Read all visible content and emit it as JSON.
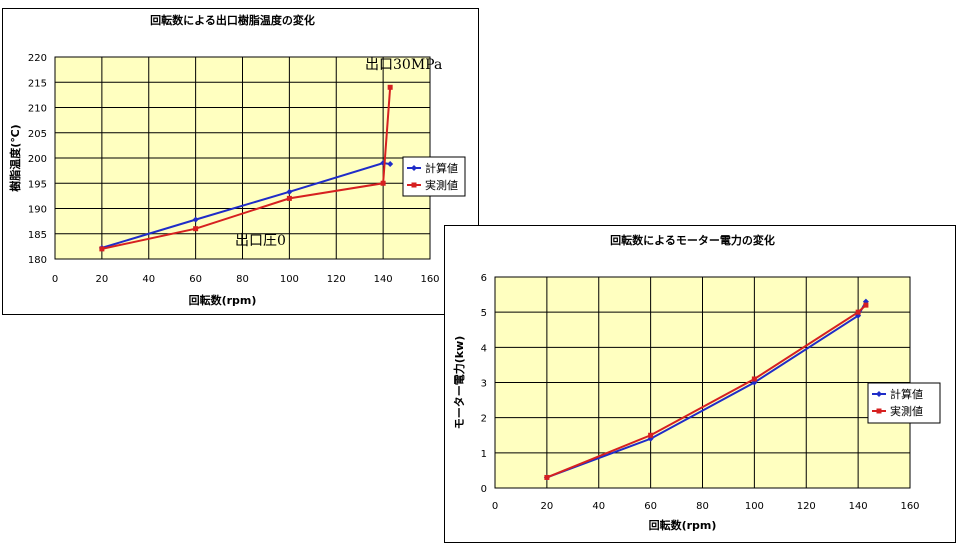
{
  "charts": [
    {
      "id": "chart1",
      "title": "回転数による出口樹脂温度の変化",
      "xlabel": "回転数(rpm)",
      "ylabel": "樹脂温度(℃)",
      "legend_placement": "right",
      "annotations": [
        "出口30MPa",
        "出口圧0"
      ],
      "chart_data": {
        "type": "line",
        "x_ticks": [
          "0",
          "20",
          "40",
          "60",
          "80",
          "100",
          "120",
          "140",
          "160"
        ],
        "y_ticks": [
          "180",
          "185",
          "190",
          "195",
          "200",
          "205",
          "210",
          "215",
          "220"
        ],
        "xlim": [
          0,
          160
        ],
        "ylim": [
          180,
          220
        ],
        "grid": true,
        "series": [
          {
            "name": "計算値",
            "color": "#1f2cc8",
            "marker": "diamond",
            "x": [
              20,
              60,
              100,
              140,
              143
            ],
            "y": [
              182.2,
              187.8,
              193.3,
              199.0,
              198.8
            ]
          },
          {
            "name": "実測値",
            "color": "#d62020",
            "marker": "square",
            "x": [
              20,
              60,
              100,
              140,
              143
            ],
            "y": [
              182.0,
              186.0,
              192.0,
              195.0,
              214.0
            ]
          }
        ]
      }
    },
    {
      "id": "chart2",
      "title": "回転数によるモーター電力の変化",
      "xlabel": "回転数(rpm)",
      "ylabel": "モーター電力(kw)",
      "legend_placement": "right",
      "annotations": [],
      "chart_data": {
        "type": "line",
        "x_ticks": [
          "0",
          "20",
          "40",
          "60",
          "80",
          "100",
          "120",
          "140",
          "160"
        ],
        "y_ticks": [
          "0",
          "1",
          "2",
          "3",
          "4",
          "5",
          "6"
        ],
        "xlim": [
          0,
          160
        ],
        "ylim": [
          0,
          6
        ],
        "grid": true,
        "series": [
          {
            "name": "計算値",
            "color": "#1f2cc8",
            "marker": "diamond",
            "x": [
              20,
              60,
              100,
              140,
              143
            ],
            "y": [
              0.3,
              1.4,
              3.0,
              4.9,
              5.3
            ]
          },
          {
            "name": "実測値",
            "color": "#d62020",
            "marker": "square",
            "x": [
              20,
              60,
              100,
              140,
              143
            ],
            "y": [
              0.3,
              1.5,
              3.1,
              5.0,
              5.2
            ]
          }
        ]
      }
    }
  ],
  "colors": {
    "plot_bg": "#ffffc0",
    "grid": "#000000",
    "frame": "#000000"
  }
}
